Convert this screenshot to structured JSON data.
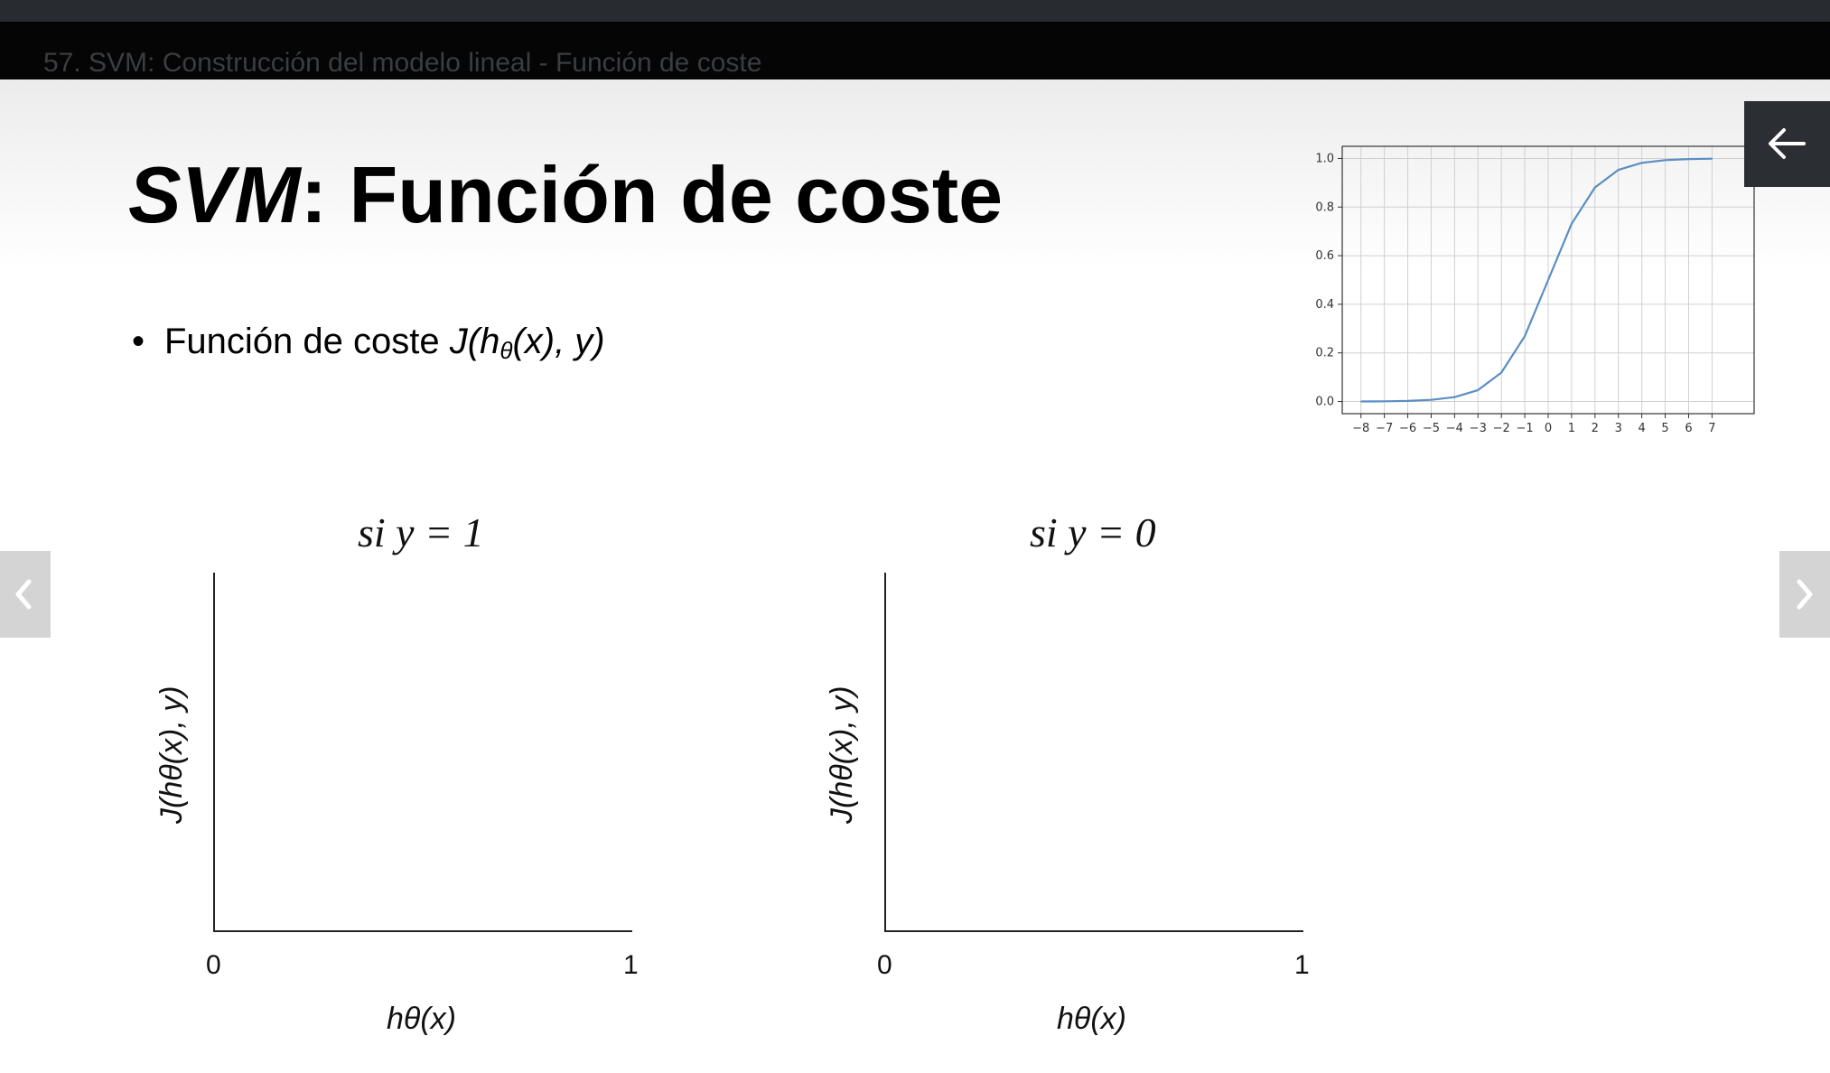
{
  "video": {
    "title": "57. SVM: Construcción del modelo lineal - Función de coste"
  },
  "slide": {
    "title_em": "SVM",
    "title_rest": ": Función de coste",
    "bullet_dot": "•",
    "bullet_text": "Función de coste ",
    "bullet_math_a": "J(h",
    "bullet_math_sub": "θ",
    "bullet_math_b": "(x), y)"
  },
  "graphs": [
    {
      "title": "si  y = 1",
      "x_tick_min": "0",
      "x_tick_max": "1",
      "xlabel": "hθ(x)",
      "ylabel": "J(hθ(x), y)"
    },
    {
      "title": "si  y = 0",
      "x_tick_min": "0",
      "x_tick_max": "1",
      "xlabel": "hθ(x)",
      "ylabel": "J(hθ(x), y)"
    }
  ],
  "chart_data": {
    "type": "line",
    "x": [
      -8,
      -7,
      -6,
      -5,
      -4,
      -3,
      -2,
      -1,
      0,
      1,
      2,
      3,
      4,
      5,
      6,
      7
    ],
    "series": [
      {
        "values": [
          0.0003,
          0.0009,
          0.0025,
          0.0067,
          0.018,
          0.047,
          0.119,
          0.269,
          0.5,
          0.731,
          0.881,
          0.953,
          0.982,
          0.993,
          0.9975,
          0.9991
        ]
      }
    ],
    "x_ticks": [
      "−8",
      "−7",
      "−6",
      "−5",
      "−4",
      "−3",
      "−2",
      "−1",
      "0",
      "1",
      "2",
      "3",
      "4",
      "5",
      "6",
      "7"
    ],
    "y_ticks": [
      "0.0",
      "0.2",
      "0.4",
      "0.6",
      "0.8",
      "1.0"
    ],
    "xlim": [
      -8.8,
      8.8
    ],
    "ylim": [
      -0.05,
      1.05
    ],
    "grid": true,
    "line_color": "#5b8ec3"
  },
  "controls": {
    "back_icon": "arrow-left-icon",
    "prev_icon": "chevron-left-icon",
    "next_icon": "chevron-right-icon"
  }
}
